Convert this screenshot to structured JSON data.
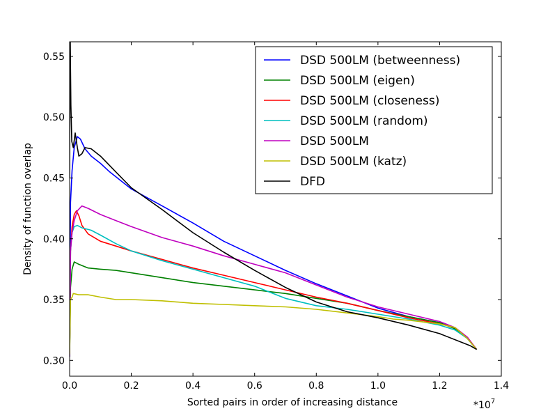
{
  "chart_data": {
    "type": "line",
    "title": "",
    "xlabel": "Sorted pairs in order of increasing distance",
    "ylabel": "Density of function overlap",
    "x_multiplier_label": "*10",
    "x_multiplier_exp": "7",
    "xlim": [
      0,
      1.4
    ],
    "ylim": [
      0.287,
      0.562
    ],
    "x_ticks": [
      {
        "value": 0.0,
        "label": "0.0"
      },
      {
        "value": 0.2,
        "label": "0.2"
      },
      {
        "value": 0.4,
        "label": "0.4"
      },
      {
        "value": 0.6,
        "label": "0.6"
      },
      {
        "value": 0.8,
        "label": "0.8"
      },
      {
        "value": 1.0,
        "label": "1.0"
      },
      {
        "value": 1.2,
        "label": "1.2"
      },
      {
        "value": 1.4,
        "label": "1.4"
      }
    ],
    "y_ticks": [
      {
        "value": 0.3,
        "label": "0.30"
      },
      {
        "value": 0.35,
        "label": "0.35"
      },
      {
        "value": 0.4,
        "label": "0.40"
      },
      {
        "value": 0.45,
        "label": "0.45"
      },
      {
        "value": 0.5,
        "label": "0.50"
      },
      {
        "value": 0.55,
        "label": "0.55"
      }
    ],
    "grid": false,
    "legend_position": "top-right",
    "series": [
      {
        "name": "DSD 500LM (betweenness)",
        "color": "#0000ff",
        "points": [
          [
            0.0,
            0.303
          ],
          [
            0.003,
            0.43
          ],
          [
            0.008,
            0.456
          ],
          [
            0.015,
            0.475
          ],
          [
            0.025,
            0.484
          ],
          [
            0.035,
            0.482
          ],
          [
            0.05,
            0.474
          ],
          [
            0.07,
            0.468
          ],
          [
            0.1,
            0.462
          ],
          [
            0.13,
            0.455
          ],
          [
            0.17,
            0.447
          ],
          [
            0.2,
            0.441
          ],
          [
            0.25,
            0.434
          ],
          [
            0.3,
            0.427
          ],
          [
            0.4,
            0.413
          ],
          [
            0.5,
            0.398
          ],
          [
            0.6,
            0.386
          ],
          [
            0.7,
            0.374
          ],
          [
            0.8,
            0.363
          ],
          [
            0.9,
            0.353
          ],
          [
            1.0,
            0.343
          ],
          [
            1.1,
            0.336
          ],
          [
            1.2,
            0.331
          ],
          [
            1.25,
            0.326
          ],
          [
            1.29,
            0.318
          ],
          [
            1.32,
            0.309
          ]
        ]
      },
      {
        "name": "DSD 500LM (eigen)",
        "color": "#008000",
        "points": [
          [
            0.0,
            0.305
          ],
          [
            0.003,
            0.36
          ],
          [
            0.008,
            0.375
          ],
          [
            0.015,
            0.381
          ],
          [
            0.03,
            0.379
          ],
          [
            0.06,
            0.376
          ],
          [
            0.1,
            0.375
          ],
          [
            0.15,
            0.374
          ],
          [
            0.2,
            0.372
          ],
          [
            0.3,
            0.368
          ],
          [
            0.4,
            0.364
          ],
          [
            0.5,
            0.361
          ],
          [
            0.6,
            0.358
          ],
          [
            0.7,
            0.355
          ],
          [
            0.8,
            0.351
          ],
          [
            0.9,
            0.347
          ],
          [
            1.0,
            0.341
          ],
          [
            1.1,
            0.336
          ],
          [
            1.2,
            0.331
          ],
          [
            1.25,
            0.326
          ],
          [
            1.29,
            0.318
          ],
          [
            1.32,
            0.309
          ]
        ]
      },
      {
        "name": "DSD 500LM (closeness)",
        "color": "#ff0000",
        "points": [
          [
            0.0,
            0.303
          ],
          [
            0.003,
            0.39
          ],
          [
            0.008,
            0.41
          ],
          [
            0.015,
            0.42
          ],
          [
            0.022,
            0.423
          ],
          [
            0.03,
            0.419
          ],
          [
            0.04,
            0.411
          ],
          [
            0.06,
            0.404
          ],
          [
            0.1,
            0.398
          ],
          [
            0.15,
            0.394
          ],
          [
            0.2,
            0.39
          ],
          [
            0.3,
            0.383
          ],
          [
            0.4,
            0.376
          ],
          [
            0.5,
            0.37
          ],
          [
            0.6,
            0.364
          ],
          [
            0.7,
            0.358
          ],
          [
            0.8,
            0.352
          ],
          [
            0.9,
            0.347
          ],
          [
            1.0,
            0.341
          ],
          [
            1.1,
            0.335
          ],
          [
            1.2,
            0.33
          ],
          [
            1.25,
            0.327
          ],
          [
            1.29,
            0.319
          ],
          [
            1.32,
            0.309
          ]
        ]
      },
      {
        "name": "DSD 500LM (random)",
        "color": "#00bfbf",
        "points": [
          [
            0.0,
            0.303
          ],
          [
            0.003,
            0.39
          ],
          [
            0.008,
            0.405
          ],
          [
            0.015,
            0.41
          ],
          [
            0.025,
            0.411
          ],
          [
            0.04,
            0.409
          ],
          [
            0.07,
            0.407
          ],
          [
            0.1,
            0.403
          ],
          [
            0.15,
            0.396
          ],
          [
            0.2,
            0.39
          ],
          [
            0.3,
            0.382
          ],
          [
            0.4,
            0.375
          ],
          [
            0.5,
            0.368
          ],
          [
            0.6,
            0.361
          ],
          [
            0.7,
            0.351
          ],
          [
            0.8,
            0.345
          ],
          [
            0.9,
            0.342
          ],
          [
            1.0,
            0.338
          ],
          [
            1.1,
            0.334
          ],
          [
            1.2,
            0.329
          ],
          [
            1.25,
            0.325
          ],
          [
            1.29,
            0.318
          ],
          [
            1.32,
            0.309
          ]
        ]
      },
      {
        "name": "DSD 500LM",
        "color": "#bf00bf",
        "points": [
          [
            0.0,
            0.303
          ],
          [
            0.003,
            0.39
          ],
          [
            0.008,
            0.405
          ],
          [
            0.015,
            0.415
          ],
          [
            0.025,
            0.423
          ],
          [
            0.04,
            0.427
          ],
          [
            0.06,
            0.425
          ],
          [
            0.1,
            0.42
          ],
          [
            0.15,
            0.415
          ],
          [
            0.2,
            0.41
          ],
          [
            0.3,
            0.401
          ],
          [
            0.4,
            0.394
          ],
          [
            0.5,
            0.386
          ],
          [
            0.6,
            0.379
          ],
          [
            0.7,
            0.372
          ],
          [
            0.8,
            0.362
          ],
          [
            0.9,
            0.352
          ],
          [
            1.0,
            0.344
          ],
          [
            1.1,
            0.338
          ],
          [
            1.2,
            0.332
          ],
          [
            1.25,
            0.327
          ],
          [
            1.29,
            0.319
          ],
          [
            1.32,
            0.309
          ]
        ]
      },
      {
        "name": "DSD 500LM (katz)",
        "color": "#bfbf00",
        "points": [
          [
            0.0,
            0.305
          ],
          [
            0.003,
            0.35
          ],
          [
            0.008,
            0.352
          ],
          [
            0.012,
            0.355
          ],
          [
            0.03,
            0.354
          ],
          [
            0.06,
            0.354
          ],
          [
            0.1,
            0.352
          ],
          [
            0.15,
            0.35
          ],
          [
            0.2,
            0.35
          ],
          [
            0.3,
            0.349
          ],
          [
            0.4,
            0.347
          ],
          [
            0.5,
            0.346
          ],
          [
            0.6,
            0.345
          ],
          [
            0.7,
            0.344
          ],
          [
            0.8,
            0.342
          ],
          [
            0.9,
            0.339
          ],
          [
            1.0,
            0.336
          ],
          [
            1.05,
            0.334
          ],
          [
            1.1,
            0.333
          ],
          [
            1.2,
            0.33
          ],
          [
            1.25,
            0.327
          ],
          [
            1.29,
            0.318
          ],
          [
            1.32,
            0.309
          ]
        ]
      },
      {
        "name": "DFD",
        "color": "#000000",
        "points": [
          [
            0.0,
            0.45
          ],
          [
            0.001,
            0.53
          ],
          [
            0.002,
            0.562
          ],
          [
            0.004,
            0.51
          ],
          [
            0.007,
            0.48
          ],
          [
            0.012,
            0.475
          ],
          [
            0.018,
            0.487
          ],
          [
            0.025,
            0.475
          ],
          [
            0.03,
            0.468
          ],
          [
            0.04,
            0.47
          ],
          [
            0.05,
            0.475
          ],
          [
            0.07,
            0.474
          ],
          [
            0.1,
            0.468
          ],
          [
            0.15,
            0.455
          ],
          [
            0.2,
            0.442
          ],
          [
            0.3,
            0.424
          ],
          [
            0.4,
            0.405
          ],
          [
            0.5,
            0.389
          ],
          [
            0.6,
            0.374
          ],
          [
            0.7,
            0.36
          ],
          [
            0.8,
            0.348
          ],
          [
            0.9,
            0.34
          ],
          [
            1.0,
            0.335
          ],
          [
            1.1,
            0.329
          ],
          [
            1.2,
            0.322
          ],
          [
            1.3,
            0.312
          ],
          [
            1.32,
            0.309
          ]
        ]
      }
    ]
  }
}
